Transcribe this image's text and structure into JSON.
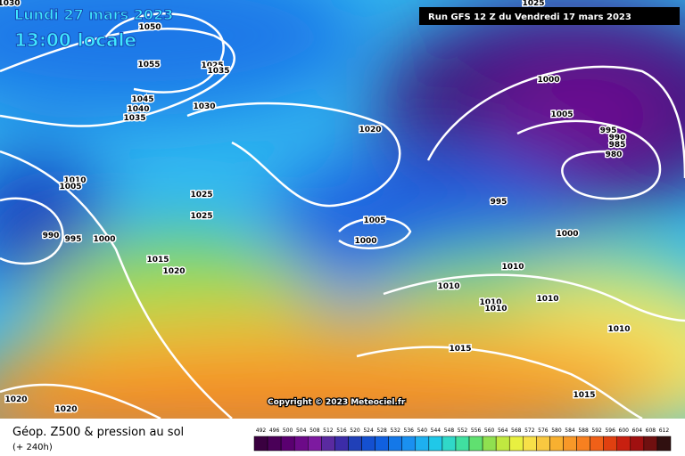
{
  "header": {
    "date": "Lundi 27 mars 2023",
    "time": "13:00 locale",
    "run": "Run GFS 12 Z du Vendredi 17 mars 2023"
  },
  "copyright": "Copyright © 2023 Meteociel.fr",
  "footer": {
    "title": "Géop. Z500 & pression au sol",
    "lead": "(+ 240h)"
  },
  "legend": {
    "ticks": [
      492,
      496,
      500,
      504,
      508,
      512,
      516,
      520,
      524,
      528,
      532,
      536,
      540,
      544,
      548,
      552,
      556,
      560,
      564,
      568,
      572,
      576,
      580,
      584,
      588,
      592,
      596,
      600,
      604,
      608,
      612
    ],
    "colors": [
      "#3a0040",
      "#4a0058",
      "#5a0070",
      "#6c0a88",
      "#7d1aa0",
      "#5a2aa0",
      "#3c2ca8",
      "#2040b8",
      "#1450d0",
      "#1060e0",
      "#1478e8",
      "#1a90f0",
      "#1eb0f0",
      "#20c8e8",
      "#30d8c8",
      "#40e0a0",
      "#60e070",
      "#90e050",
      "#c0e840",
      "#e8f040",
      "#f8e048",
      "#f8c840",
      "#f8b030",
      "#f89828",
      "#f88020",
      "#f06018",
      "#e04010",
      "#c82010",
      "#a01010",
      "#701010",
      "#301010"
    ]
  },
  "map": {
    "isobar_labels": [
      1030,
      1050,
      1055,
      1025,
      1035,
      1045,
      1040,
      1035,
      1030,
      1020,
      1025,
      1000,
      1005,
      995,
      990,
      985,
      980,
      995,
      1000,
      1010,
      1005,
      990,
      995,
      1000,
      1025,
      1025,
      1015,
      1020,
      1005,
      1000,
      1010,
      1010,
      1010,
      1010,
      1010,
      1010,
      1015,
      1015,
      1020,
      1020
    ]
  }
}
